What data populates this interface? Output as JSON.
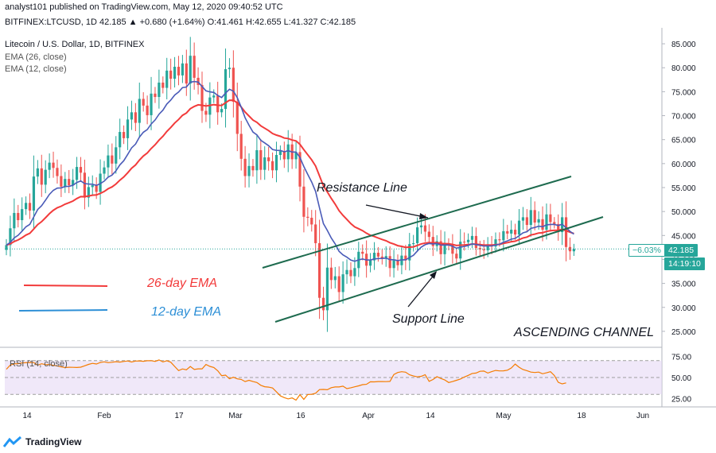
{
  "header": {
    "publisher_line": "analyst101 published on TradingView.com, May 12, 2020 09:40:52 UTC",
    "symbol_line": "BITFINEX:LTCUSD, 1D 42.185 ▲ +0.680 (+1.64%) O:41.461 H:42.655 L:41.327 C:42.185"
  },
  "legend": {
    "title": "Litecoin / U.S. Dollar, 1D, BITFINEX",
    "ema26": "EMA (26, close)",
    "ema12": "EMA (12, close)"
  },
  "annotations": {
    "resistance": "Resistance Line",
    "support": "Support Line",
    "channel": "ASCENDING CHANNEL",
    "ema26_label": "26-day EMA",
    "ema12_label": "12-day EMA"
  },
  "price_tags": {
    "change": "−6.03%",
    "price": "42.185",
    "timer": "14:19:10"
  },
  "rsi": {
    "label": "RSI (14, close)"
  },
  "footer": {
    "brand": "TradingView"
  },
  "colors": {
    "up": "#26a69a",
    "down": "#ef5350",
    "ema26": "#f23b3b",
    "ema12": "#4a5bb8",
    "channel": "#1e6b4f",
    "rsi_line": "#f57c00",
    "rsi_band": "#e6d9f5",
    "ema26_text": "#f23b3b",
    "ema12_text": "#2d8fd6"
  },
  "chart_data": [
    {
      "type": "candlestick",
      "title": "Litecoin / U.S. Dollar, 1D, BITFINEX",
      "x_ticks": [
        "14",
        "Feb",
        "17",
        "Mar",
        "16",
        "Apr",
        "14",
        "May",
        "18",
        "Jun"
      ],
      "y_ticks": [
        "85.000",
        "80.000",
        "75.000",
        "70.000",
        "65.000",
        "60.000",
        "55.000",
        "50.000",
        "45.000",
        "40.000",
        "35.000",
        "30.000",
        "25.000"
      ],
      "ylim": [
        22.5,
        87.5
      ],
      "close": [
        43,
        46.5,
        49.7,
        48.2,
        50.5,
        51.8,
        50.2,
        57.3,
        59,
        55.6,
        58.7,
        60.2,
        59.1,
        57.4,
        55.2,
        56.8,
        55.5,
        56.6,
        59.3,
        58.1,
        52.9,
        55.1,
        55.5,
        54.1,
        57.9,
        59.2,
        61.7,
        60,
        63.4,
        66.6,
        65.3,
        69.2,
        70.7,
        68.5,
        73.5,
        72.1,
        70.1,
        74.6,
        73.9,
        76.9,
        75.8,
        79.4,
        77.7,
        80.2,
        78.4,
        80.9,
        76.7,
        82.5,
        77.9,
        76.4,
        71,
        70.2,
        73.8,
        74.2,
        70.7,
        71.4,
        79.7,
        80,
        72.9,
        66.2,
        61,
        57.4,
        59.5,
        58.6,
        62.8,
        58.7,
        61.3,
        60.5,
        58.6,
        61.8,
        62.6,
        60.9,
        64,
        60.9,
        62.4,
        55.2,
        48.9,
        48.7,
        47.3,
        43.4,
        32,
        29.4,
        38.3,
        35.7,
        36.5,
        33.2,
        36.9,
        37.8,
        36.5,
        38.2,
        41.6,
        41.2,
        38.7,
        39.8,
        41.4,
        40.6,
        40.3,
        40.7,
        38.2,
        39.8,
        38.8,
        40.8,
        39.8,
        43.2,
        43.4,
        46.7,
        47.1,
        45.8,
        44.7,
        42.8,
        43.8,
        41.1,
        43.2,
        43,
        41.2,
        40.2,
        43.7,
        43.6,
        44.1,
        44.9,
        42.4,
        42.1,
        41.9,
        43.1,
        42.7,
        44.2,
        44,
        45.9,
        45.4,
        46.2,
        45.2,
        48.1,
        48.8,
        47.2,
        50.3,
        47.7,
        48.4,
        46.2,
        49.4,
        47.8,
        47.4,
        45.7,
        48.8,
        42.6,
        41.7,
        42.185
      ]
    },
    {
      "type": "line",
      "title": "RSI (14, close)",
      "y_ticks": [
        "75.00",
        "50.00",
        "25.00"
      ],
      "ylim": [
        17,
        83
      ],
      "band": [
        30,
        70
      ],
      "values": [
        59.8,
        64.7,
        66.2,
        66.4,
        67.3,
        67.5,
        67.8,
        67.7,
        64.7,
        66.3,
        65.3,
        65.4,
        64.4,
        63.8,
        62.5,
        61.8,
        62.2,
        62.1,
        61.9,
        62.3,
        63.9,
        65.6,
        66.8,
        66,
        67.8,
        68.6,
        67.6,
        68.1,
        68.8,
        68.3,
        69,
        69.6,
        68.4,
        69.5,
        69.7,
        69.2,
        69.9,
        70,
        69.1,
        70.8,
        68.5,
        69.9,
        68.2,
        63.1,
        58.2,
        60.2,
        59.1,
        63,
        59.5,
        60.3,
        60.3,
        65.5,
        63.2,
        61.9,
        58,
        52.2,
        52.8,
        48.5,
        50.3,
        48.4,
        47.7,
        45.2,
        46.7,
        45.2,
        44.1,
        40.8,
        39.1,
        38.6,
        37.6,
        32.9,
        28.2,
        26.1,
        24.6,
        25.8,
        23.1,
        29.6,
        24.1,
        29.8,
        30.1,
        31.3,
        35.7,
        35.9,
        35.5,
        37.9,
        38.8,
        38.8,
        39.7,
        36.8,
        37.8,
        39,
        40.1,
        41.5,
        41.9,
        44.9,
        44.8,
        45.2,
        45.2,
        45.1,
        45.4,
        53.6,
        55.9,
        56.9,
        56.3,
        53.2,
        51.8,
        50.8,
        51.4,
        53.3,
        45.5,
        47.6,
        50.9,
        48.9,
        47.2,
        44.1,
        45.2,
        46.7,
        48.2,
        50.6,
        52.5,
        54.8,
        55.3,
        57.4,
        57.6,
        55.3,
        57,
        58.4,
        57.8,
        57.9,
        58.7,
        61.3,
        65.9,
        62.2,
        59.4,
        58.1,
        56.4,
        55.9,
        56.4,
        54.4,
        55.6,
        56.9,
        52.4,
        44.3,
        42.5,
        43.6
      ]
    }
  ]
}
